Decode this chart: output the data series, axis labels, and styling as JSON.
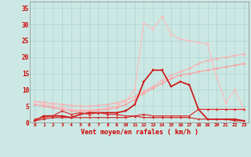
{
  "background_color": "#cce8e4",
  "grid_color": "#aad4d0",
  "x_labels": [
    "0",
    "1",
    "2",
    "3",
    "4",
    "5",
    "6",
    "7",
    "8",
    "9",
    "10",
    "11",
    "12",
    "13",
    "14",
    "15",
    "16",
    "17",
    "18",
    "19",
    "20",
    "21",
    "22",
    "23"
  ],
  "x_values": [
    0,
    1,
    2,
    3,
    4,
    5,
    6,
    7,
    8,
    9,
    10,
    11,
    12,
    13,
    14,
    15,
    16,
    17,
    18,
    19,
    20,
    21,
    22,
    23
  ],
  "ylim": [
    0,
    37
  ],
  "yticks": [
    0,
    5,
    10,
    15,
    20,
    25,
    30,
    35
  ],
  "xlabel": "Vent moyen/en rafales ( km/h )",
  "series": [
    {
      "color": "#ffaaaa",
      "linewidth": 0.8,
      "marker": "D",
      "markersize": 1.5,
      "values": [
        6.5,
        6.2,
        5.8,
        5.5,
        5.2,
        5.0,
        5.0,
        5.2,
        5.5,
        6.0,
        6.8,
        8.0,
        9.5,
        11.0,
        13.0,
        14.5,
        15.5,
        16.5,
        18.0,
        19.0,
        19.5,
        20.0,
        20.5,
        21.0
      ]
    },
    {
      "color": "#ffbbbb",
      "linewidth": 0.8,
      "marker": "D",
      "markersize": 1.5,
      "values": [
        6.5,
        5.5,
        5.0,
        4.5,
        4.0,
        3.8,
        3.8,
        4.0,
        4.5,
        5.0,
        6.5,
        10.0,
        30.5,
        28.5,
        32.5,
        27.0,
        25.5,
        25.0,
        24.5,
        24.0,
        14.0,
        6.0,
        10.0,
        4.0
      ]
    },
    {
      "color": "#ff9999",
      "linewidth": 0.8,
      "marker": "D",
      "markersize": 1.5,
      "values": [
        5.5,
        5.0,
        4.5,
        4.0,
        3.5,
        3.5,
        3.5,
        3.8,
        4.0,
        4.5,
        5.5,
        7.0,
        9.0,
        10.5,
        12.0,
        13.5,
        14.5,
        15.0,
        15.5,
        16.0,
        16.5,
        17.0,
        17.5,
        18.0
      ]
    },
    {
      "color": "#cc1111",
      "linewidth": 1.2,
      "marker": "s",
      "markersize": 2.0,
      "values": [
        0.5,
        2.0,
        2.0,
        2.0,
        1.5,
        2.5,
        3.0,
        3.0,
        3.0,
        3.0,
        3.5,
        5.5,
        12.5,
        16.0,
        16.0,
        11.0,
        12.5,
        11.5,
        4.0,
        1.0,
        1.0,
        1.0,
        1.0,
        0.5
      ]
    },
    {
      "color": "#dd3333",
      "linewidth": 0.9,
      "marker": "^",
      "markersize": 2.0,
      "values": [
        1.0,
        1.5,
        2.0,
        3.5,
        2.5,
        3.0,
        2.5,
        3.0,
        2.5,
        2.5,
        2.0,
        2.0,
        2.5,
        2.0,
        2.0,
        2.0,
        2.0,
        2.0,
        4.0,
        4.0,
        4.0,
        4.0,
        4.0,
        4.0
      ]
    },
    {
      "color": "#cc2222",
      "linewidth": 0.8,
      "marker": "v",
      "markersize": 1.5,
      "values": [
        0.5,
        1.0,
        1.5,
        1.5,
        1.5,
        1.5,
        1.5,
        1.5,
        1.5,
        1.5,
        1.5,
        2.0,
        1.5,
        1.5,
        1.5,
        1.5,
        1.5,
        1.5,
        1.0,
        1.0,
        1.0,
        1.0,
        0.5,
        0.5
      ]
    }
  ]
}
